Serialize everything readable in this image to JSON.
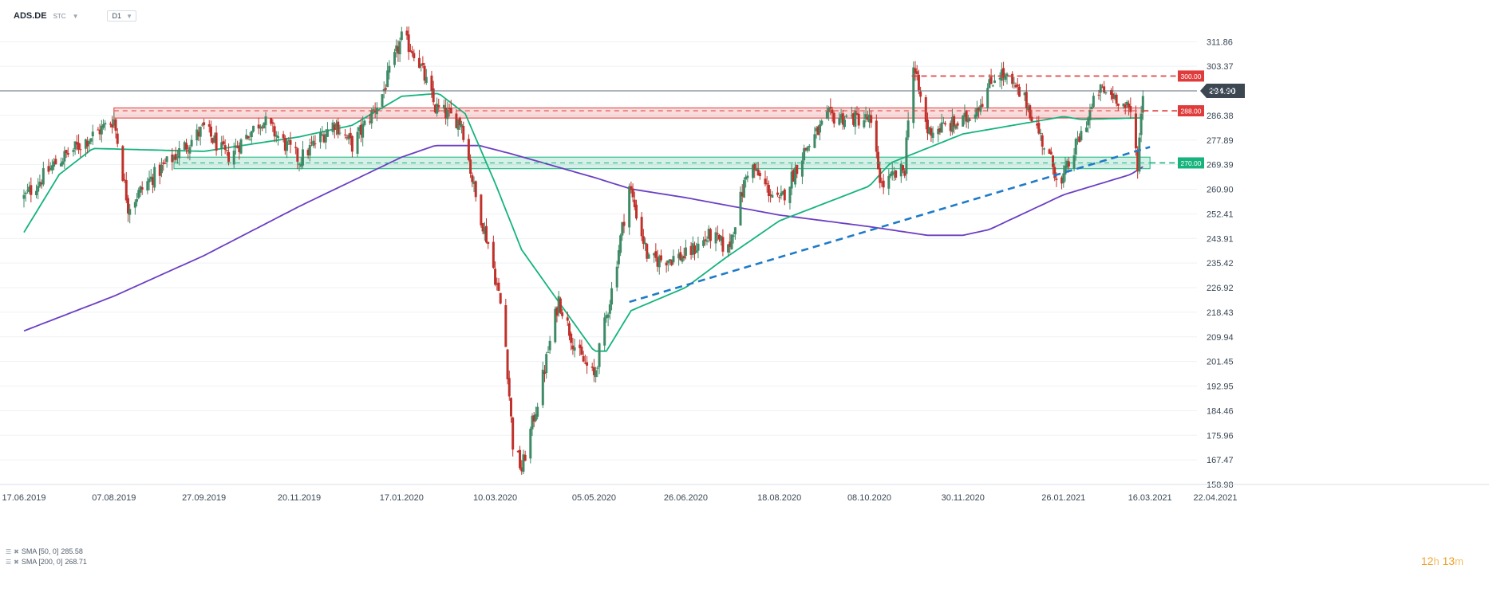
{
  "header": {
    "symbol": "ADS.DE",
    "market": "STC",
    "timeframe": "D1"
  },
  "legend": [
    {
      "label": "SMA [50, 0]",
      "value": "285.58",
      "color": "#14b37d"
    },
    {
      "label": "SMA [200, 0]",
      "value": "268.71",
      "color": "#6b3fc2"
    }
  ],
  "timer": {
    "hours": "12",
    "h_unit": "h",
    "minutes": "13",
    "m_unit": "m"
  },
  "chart_data": {
    "type": "candlestick",
    "y_ticks": [
      "311.86",
      "303.37",
      "294.90",
      "286.38",
      "277.89",
      "269.39",
      "260.90",
      "252.41",
      "243.91",
      "235.42",
      "226.92",
      "218.43",
      "209.94",
      "201.45",
      "192.95",
      "184.46",
      "175.96",
      "167.47",
      "158.98"
    ],
    "ylim": [
      158.98,
      318.0
    ],
    "x_ticks": [
      "17.06.2019",
      "07.08.2019",
      "27.09.2019",
      "20.11.2019",
      "17.01.2020",
      "10.03.2020",
      "05.05.2020",
      "26.06.2020",
      "18.08.2020",
      "08.10.2020",
      "30.11.2020",
      "26.01.2021",
      "16.03.2021",
      "22.04.2021"
    ],
    "last_price": {
      "value": 294.9,
      "label": "294.90",
      "color": "#3d4752"
    },
    "levels": [
      {
        "value": 300.0,
        "label": "300.00",
        "color": "#e03b3b"
      },
      {
        "value": 288.0,
        "label": "288.00",
        "color": "#e03b3b"
      },
      {
        "value": 270.0,
        "label": "270.00",
        "color": "#17b37c"
      }
    ],
    "zones": [
      {
        "from_date": "07.08.2019",
        "to_date": "12.03.2021",
        "low": 285.5,
        "high": 289.0,
        "color": "#e03b3b"
      },
      {
        "from_date": "10.09.2019",
        "to_date": "16.03.2021",
        "low": 268.0,
        "high": 272.0,
        "color": "#17b37c"
      }
    ],
    "trendline": {
      "from": [
        "25.05.2020",
        222.0
      ],
      "to": [
        "16.03.2021",
        275.5
      ],
      "color": "#1f7bc7"
    },
    "close_path": [
      [
        "17.06.2019",
        258
      ],
      [
        "05.07.2019",
        270
      ],
      [
        "07.08.2019",
        285
      ],
      [
        "15.08.2019",
        255
      ],
      [
        "27.08.2019",
        264
      ],
      [
        "27.09.2019",
        282
      ],
      [
        "10.10.2019",
        272
      ],
      [
        "30.10.2019",
        285
      ],
      [
        "20.11.2019",
        271
      ],
      [
        "10.12.2019",
        284
      ],
      [
        "20.12.2019",
        276
      ],
      [
        "05.01.2020",
        292
      ],
      [
        "17.01.2020",
        313
      ],
      [
        "25.01.2020",
        308
      ],
      [
        "05.02.2020",
        289
      ],
      [
        "20.02.2020",
        284
      ],
      [
        "28.02.2020",
        258
      ],
      [
        "07.03.2020",
        240
      ],
      [
        "15.03.2020",
        215
      ],
      [
        "20.03.2020",
        173
      ],
      [
        "25.03.2020",
        164
      ],
      [
        "05.04.2020",
        193
      ],
      [
        "15.04.2020",
        223
      ],
      [
        "25.04.2020",
        205
      ],
      [
        "05.05.2020",
        196
      ],
      [
        "15.05.2020",
        226
      ],
      [
        "25.05.2020",
        262
      ],
      [
        "05.06.2020",
        236
      ],
      [
        "26.06.2020",
        238
      ],
      [
        "10.07.2020",
        245
      ],
      [
        "20.07.2020",
        240
      ],
      [
        "01.08.2020",
        270
      ],
      [
        "10.08.2020",
        262
      ],
      [
        "18.08.2020",
        256
      ],
      [
        "01.09.2020",
        274
      ],
      [
        "15.09.2020",
        286
      ],
      [
        "08.10.2020",
        285
      ],
      [
        "15.10.2020",
        262
      ],
      [
        "28.10.2020",
        268
      ],
      [
        "01.11.2020",
        306
      ],
      [
        "10.11.2020",
        281
      ],
      [
        "30.11.2020",
        284
      ],
      [
        "10.12.2020",
        291
      ],
      [
        "20.12.2020",
        302
      ],
      [
        "05.01.2021",
        291
      ],
      [
        "15.01.2021",
        276
      ],
      [
        "25.01.2021",
        262
      ],
      [
        "26.01.2021",
        265
      ],
      [
        "05.02.2021",
        280
      ],
      [
        "15.02.2021",
        295
      ],
      [
        "25.02.2021",
        293
      ],
      [
        "05.03.2021",
        287
      ],
      [
        "09.03.2021",
        270
      ],
      [
        "12.03.2021",
        294.9
      ]
    ],
    "sma50_path": [
      [
        "17.06.2019",
        246
      ],
      [
        "07.07.2019",
        266
      ],
      [
        "26.07.2019",
        275
      ],
      [
        "27.09.2019",
        274
      ],
      [
        "20.11.2019",
        279
      ],
      [
        "20.12.2019",
        283
      ],
      [
        "17.01.2020",
        293
      ],
      [
        "07.02.2020",
        294
      ],
      [
        "22.02.2020",
        287
      ],
      [
        "10.03.2020",
        263
      ],
      [
        "25.03.2020",
        240
      ],
      [
        "15.04.2020",
        222
      ],
      [
        "05.05.2020",
        205
      ],
      [
        "12.05.2020",
        205
      ],
      [
        "26.05.2020",
        219
      ],
      [
        "26.06.2020",
        227
      ],
      [
        "18.07.2020",
        237
      ],
      [
        "18.08.2020",
        250
      ],
      [
        "08.10.2020",
        262
      ],
      [
        "20.10.2020",
        270
      ],
      [
        "30.11.2020",
        280
      ],
      [
        "26.01.2021",
        286
      ],
      [
        "05.02.2021",
        285
      ],
      [
        "12.03.2021",
        285.58
      ]
    ],
    "sma200_path": [
      [
        "17.06.2019",
        212
      ],
      [
        "07.08.2019",
        224
      ],
      [
        "27.09.2019",
        238
      ],
      [
        "20.11.2019",
        255
      ],
      [
        "17.01.2020",
        272
      ],
      [
        "05.02.2020",
        276
      ],
      [
        "01.03.2020",
        276
      ],
      [
        "20.03.2020",
        273
      ],
      [
        "05.05.2020",
        265
      ],
      [
        "26.05.2020",
        261
      ],
      [
        "26.06.2020",
        258
      ],
      [
        "18.08.2020",
        252
      ],
      [
        "08.10.2020",
        248
      ],
      [
        "10.11.2020",
        245
      ],
      [
        "30.11.2020",
        245
      ],
      [
        "15.12.2020",
        247
      ],
      [
        "26.01.2021",
        259
      ],
      [
        "05.03.2021",
        266
      ],
      [
        "12.03.2021",
        268.71
      ]
    ],
    "series": [
      {
        "name": "SMA [50, 0]",
        "color": "#14b37d"
      },
      {
        "name": "SMA [200, 0]",
        "color": "#6b3fc2"
      }
    ],
    "colors": {
      "up": "#3f8a66",
      "down": "#c0312b",
      "grid": "#eef1f4",
      "axis_text": "#3a4855"
    }
  }
}
